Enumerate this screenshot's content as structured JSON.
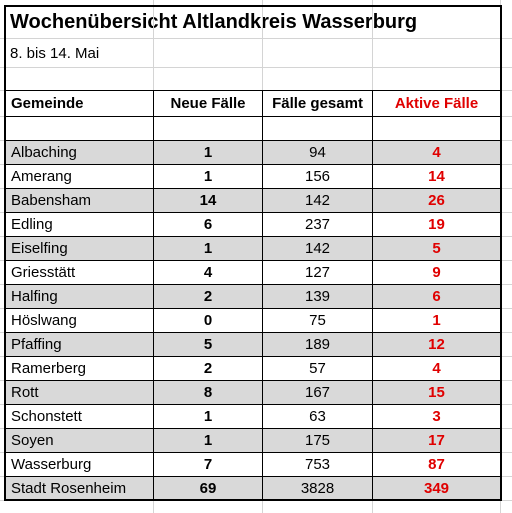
{
  "title": "Wochenübersicht Altlandkreis Wasserburg",
  "subtitle": "8. bis 14. Mai",
  "table": {
    "header": [
      "Gemeinde",
      "Neue Fälle",
      "Fälle gesamt",
      "Aktive Fälle"
    ],
    "rows": [
      [
        "Albaching",
        1,
        94,
        4
      ],
      [
        "Amerang",
        1,
        156,
        14
      ],
      [
        "Babensham",
        14,
        142,
        26
      ],
      [
        "Edling",
        6,
        237,
        19
      ],
      [
        "Eiselfing",
        1,
        142,
        5
      ],
      [
        "Griesstätt",
        4,
        127,
        9
      ],
      [
        "Halfing",
        2,
        139,
        6
      ],
      [
        "Höslwang",
        0,
        75,
        1
      ],
      [
        "Pfaffing",
        5,
        189,
        12
      ],
      [
        "Ramerberg",
        2,
        57,
        4
      ],
      [
        "Rott",
        8,
        167,
        15
      ],
      [
        "Schonstett",
        1,
        63,
        3
      ],
      [
        "Soyen",
        1,
        175,
        17
      ],
      [
        "Wasserburg",
        7,
        753,
        87
      ],
      [
        "Stadt Rosenheim",
        69,
        3828,
        349
      ]
    ]
  }
}
